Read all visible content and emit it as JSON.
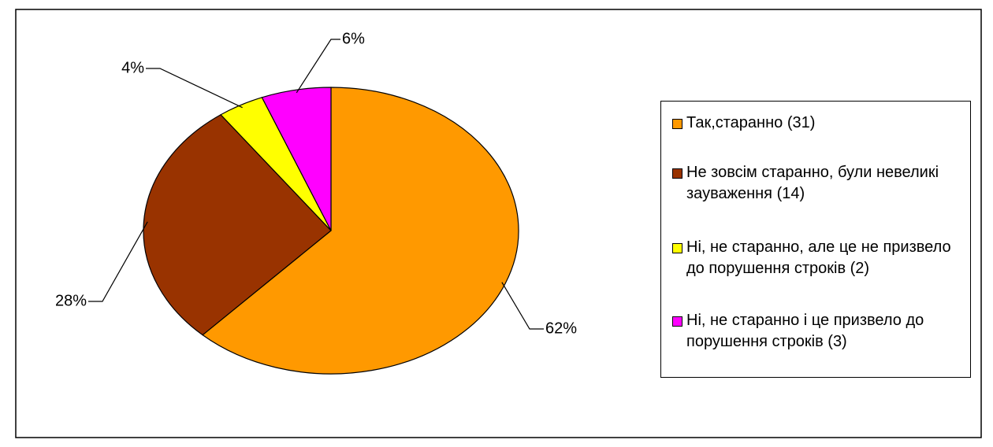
{
  "chart_data": {
    "type": "pie",
    "categories": [
      "Так,старанно (31)",
      "Не зовсім старанно, були невеликі зауваження (14)",
      "Ні, не старанно, але це не призвело до порушення строків (2)",
      "Ні, не старанно і це призвело до порушення строків (3)"
    ],
    "values": [
      62,
      28,
      4,
      6
    ],
    "value_labels": [
      "62%",
      "28%",
      "4%",
      "6%"
    ],
    "colors": [
      "#ff9900",
      "#993300",
      "#ffff00",
      "#ff00ff"
    ],
    "legend": "right"
  }
}
